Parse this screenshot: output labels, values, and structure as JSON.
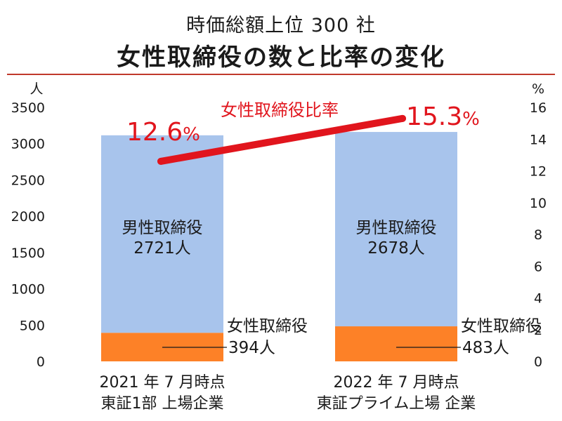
{
  "header": {
    "subtitle": "時価総額上位 300 社",
    "title": "女性取締役の数と比率の変化"
  },
  "chart_data": {
    "type": "bar",
    "stacked": true,
    "categories": [
      [
        "2021 年 7 月時点",
        "東証1部 上場企業"
      ],
      [
        "2022 年 7 月時点",
        "東証プライム上場 企業"
      ]
    ],
    "series": [
      {
        "name": "女性取締役",
        "values": [
          394,
          483
        ],
        "value_labels": [
          "394人",
          "483人"
        ],
        "color": "#fd8127"
      },
      {
        "name": "男性取締役",
        "values": [
          2721,
          2678
        ],
        "value_labels": [
          "2721人",
          "2678人"
        ],
        "color": "#a8c4ec"
      }
    ],
    "rate_series": {
      "name": "女性取締役比率",
      "values": [
        12.6,
        15.3
      ],
      "value_labels": [
        "12.6",
        "15.3"
      ],
      "unit": "%",
      "color": "#e1151d"
    },
    "y_left": {
      "unit": "人",
      "range": [
        0,
        3500
      ],
      "ticks": [
        "0",
        "500",
        "1000",
        "1500",
        "2000",
        "2500",
        "3000",
        "3500"
      ]
    },
    "y_right": {
      "unit": "%",
      "range": [
        0,
        16
      ],
      "ticks": [
        "0",
        "2",
        "4",
        "6",
        "8",
        "10",
        "12",
        "14",
        "16"
      ]
    },
    "grid": false,
    "legend": "none"
  }
}
